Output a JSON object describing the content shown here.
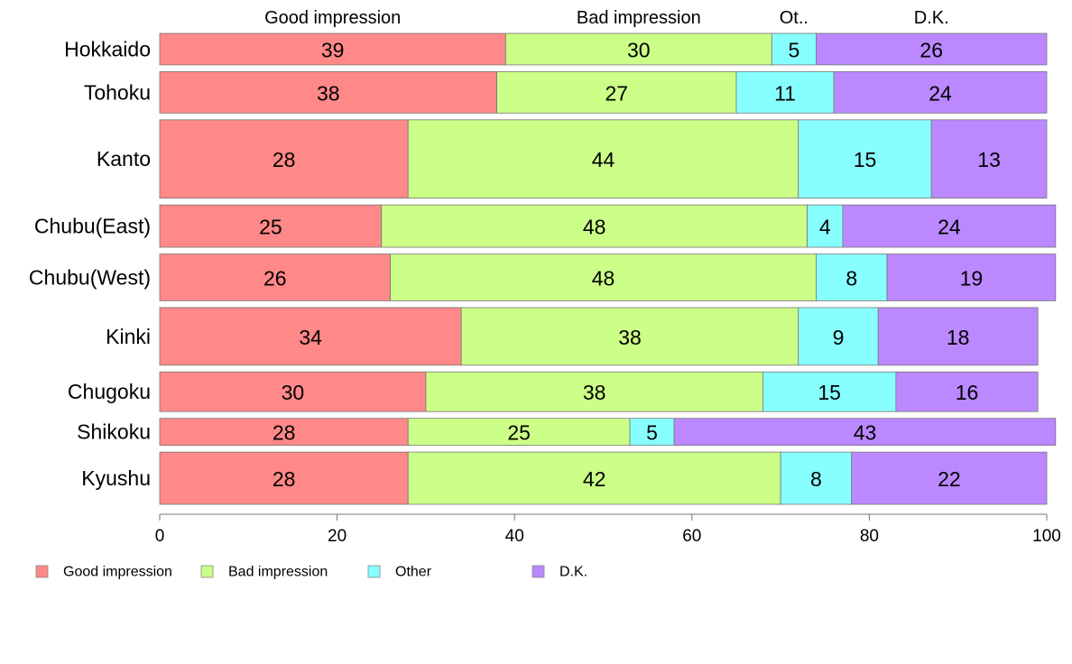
{
  "chart_data": {
    "type": "bar",
    "subtype": "stacked-horizontal-percent-mosaic",
    "categories": [
      "Hokkaido",
      "Tohoku",
      "Kanto",
      "Chubu(East)",
      "Chubu(West)",
      "Kinki",
      "Chugoku",
      "Shikoku",
      "Kyushu"
    ],
    "relative_row_size": [
      35,
      46,
      87,
      47,
      52,
      64,
      44,
      30,
      58
    ],
    "series": [
      {
        "name": "Good impression",
        "top_label": "Good impression",
        "color": "#FF8888",
        "values": [
          39,
          38,
          28,
          25,
          26,
          34,
          30,
          28,
          28
        ]
      },
      {
        "name": "Bad impression",
        "top_label": "Bad impression",
        "color": "#CCFF88",
        "values": [
          30,
          27,
          44,
          48,
          48,
          38,
          38,
          25,
          42
        ]
      },
      {
        "name": "Other",
        "top_label": "Ot..",
        "color": "#88FFFF",
        "values": [
          5,
          11,
          15,
          4,
          8,
          9,
          15,
          5,
          8
        ]
      },
      {
        "name": "D.K.",
        "top_label": "D.K.",
        "color": "#BB88FF",
        "values": [
          26,
          24,
          13,
          24,
          19,
          18,
          16,
          43,
          22
        ]
      }
    ],
    "xlim": [
      0,
      100
    ],
    "xticks": [
      "0",
      "20",
      "40",
      "60",
      "80",
      "100"
    ],
    "legend_position": "bottom-left"
  }
}
